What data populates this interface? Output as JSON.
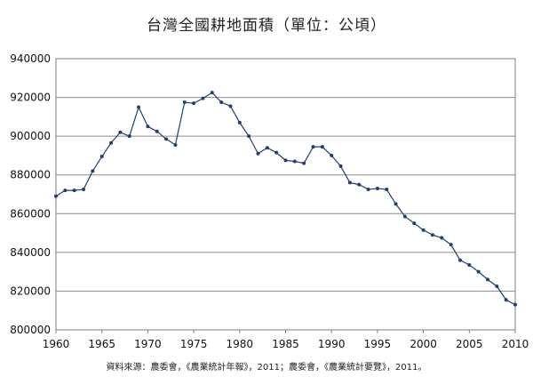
{
  "chart_data": {
    "type": "line",
    "title": "台灣全國耕地面積（單位：公頃）",
    "source": "資料來源：農委會，《農業統計年報》，2011；農委會，《農業統計要覽》，2011。",
    "xlabel": "",
    "ylabel": "",
    "xlim": [
      1960,
      2010
    ],
    "ylim": [
      800000,
      940000
    ],
    "x_ticks": [
      1960,
      1965,
      1970,
      1975,
      1980,
      1985,
      1990,
      1995,
      2000,
      2005,
      2010
    ],
    "y_ticks": [
      800000,
      820000,
      840000,
      860000,
      880000,
      900000,
      920000,
      940000
    ],
    "x_tick_labels": [
      "1960",
      "1965",
      "1970",
      "1975",
      "1980",
      "1985",
      "1990",
      "1995",
      "2000",
      "2005",
      "2010"
    ],
    "y_tick_labels": [
      "800000",
      "820000",
      "840000",
      "860000",
      "880000",
      "900000",
      "920000",
      "940000"
    ],
    "grid": true,
    "line_color": "#1f3f6e",
    "x": [
      1960,
      1961,
      1962,
      1963,
      1964,
      1965,
      1966,
      1967,
      1968,
      1969,
      1970,
      1971,
      1972,
      1973,
      1974,
      1975,
      1976,
      1977,
      1978,
      1979,
      1980,
      1981,
      1982,
      1983,
      1984,
      1985,
      1986,
      1987,
      1988,
      1989,
      1990,
      1991,
      1992,
      1993,
      1994,
      1995,
      1996,
      1997,
      1998,
      1999,
      2000,
      2001,
      2002,
      2003,
      2004,
      2005,
      2006,
      2007,
      2008,
      2009,
      2010
    ],
    "values": [
      869000,
      872000,
      872000,
      872500,
      882000,
      889500,
      896500,
      902000,
      900000,
      915000,
      905000,
      902500,
      898500,
      895500,
      917500,
      917000,
      919500,
      922500,
      917500,
      915500,
      907000,
      900000,
      891000,
      894000,
      891500,
      887500,
      887000,
      886000,
      894500,
      894500,
      890000,
      884500,
      876000,
      875000,
      872500,
      873000,
      872500,
      865000,
      858500,
      855000,
      851500,
      849000,
      847500,
      844000,
      836000,
      833500,
      830000,
      826000,
      822500,
      815500,
      813000
    ]
  }
}
